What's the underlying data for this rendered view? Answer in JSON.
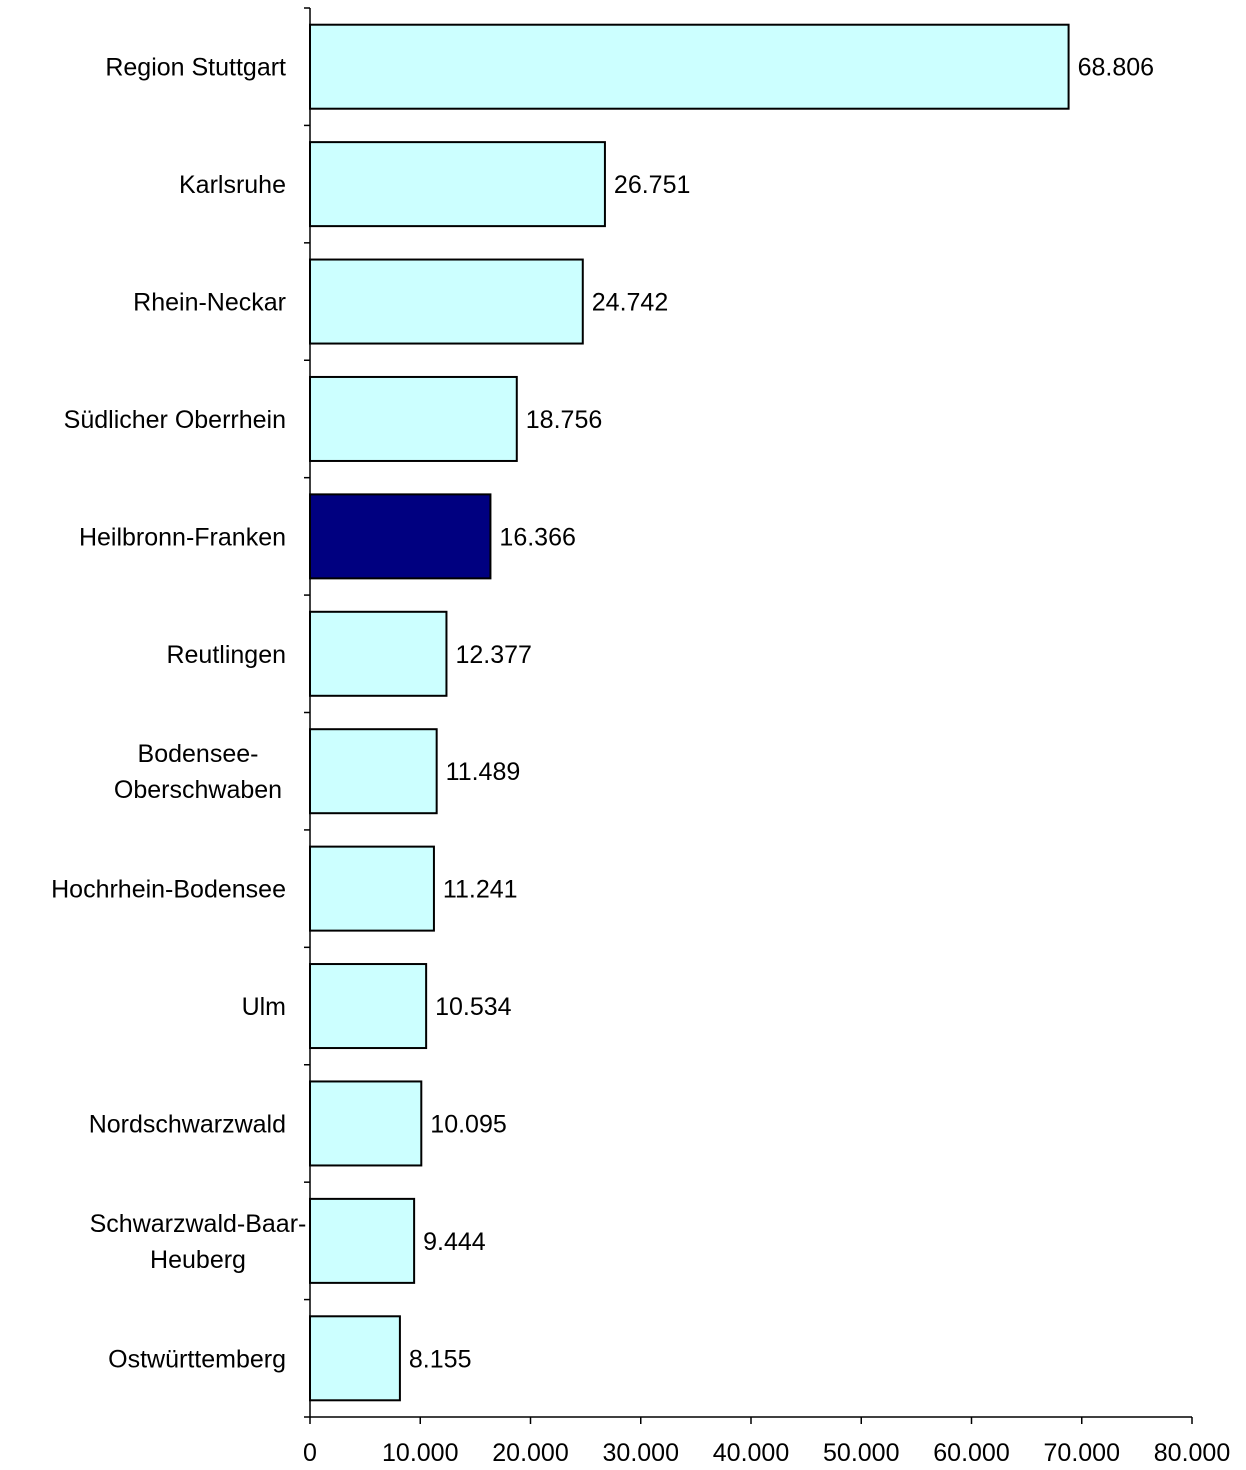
{
  "chart_data": {
    "type": "bar",
    "orientation": "horizontal",
    "categories": [
      "Region Stuttgart",
      "Karlsruhe",
      "Rhein-Neckar",
      "Südlicher Oberrhein",
      "Heilbronn-Franken",
      "Reutlingen",
      "Bodensee-\nOberschwaben",
      "Hochrhein-Bodensee",
      "Ulm",
      "Nordschwarzwald",
      "Schwarzwald-Baar-\nHeuberg",
      "Ostwürttemberg"
    ],
    "values": [
      68806,
      26751,
      24742,
      18756,
      16366,
      12377,
      11489,
      11241,
      10534,
      10095,
      9444,
      8155
    ],
    "value_labels": [
      "68.806",
      "26.751",
      "24.742",
      "18.756",
      "16.366",
      "12.377",
      "11.489",
      "11.241",
      "10.534",
      "10.095",
      "9.444",
      "8.155"
    ],
    "highlight_category": "Heilbronn-Franken",
    "xlim": [
      0,
      80000
    ],
    "x_ticks": [
      0,
      10000,
      20000,
      30000,
      40000,
      50000,
      60000,
      70000,
      80000
    ],
    "x_tick_labels": [
      "0",
      "10.000",
      "20.000",
      "30.000",
      "40.000",
      "50.000",
      "60.000",
      "70.000",
      "80.000"
    ],
    "title": "",
    "xlabel": "",
    "ylabel": "",
    "grid": false,
    "legend": "none",
    "colors": {
      "bar_fill": "#CCFFFF",
      "highlight_fill": "#000080",
      "bar_stroke": "#000000",
      "axis": "#000000"
    }
  }
}
